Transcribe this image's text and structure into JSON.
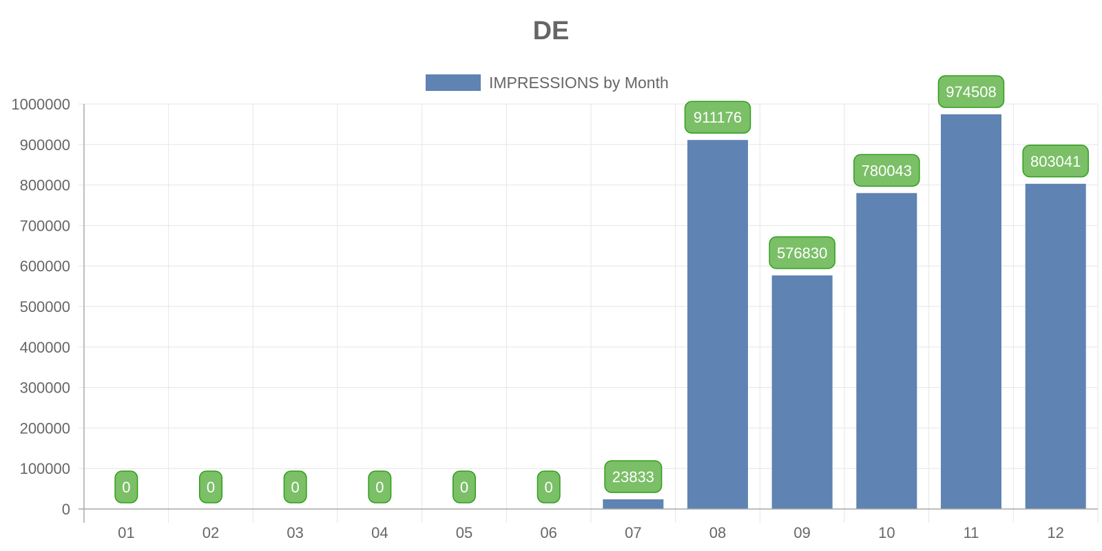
{
  "chart_data": {
    "type": "bar",
    "title": "DE",
    "categories": [
      "01",
      "02",
      "03",
      "04",
      "05",
      "06",
      "07",
      "08",
      "09",
      "10",
      "11",
      "12"
    ],
    "series": [
      {
        "name": "IMPRESSIONS by Month",
        "values": [
          0,
          0,
          0,
          0,
          0,
          0,
          23833,
          911176,
          576830,
          780043,
          974508,
          803041
        ],
        "color": "#5f83b2"
      }
    ],
    "ylim": [
      0,
      1000000
    ],
    "yticks": [
      0,
      100000,
      200000,
      300000,
      400000,
      500000,
      600000,
      700000,
      800000,
      900000,
      1000000
    ],
    "grid": true,
    "legend_position": "top-center",
    "data_label_color": "#7bbf67",
    "data_label_border_color": "#2f9e1c"
  }
}
